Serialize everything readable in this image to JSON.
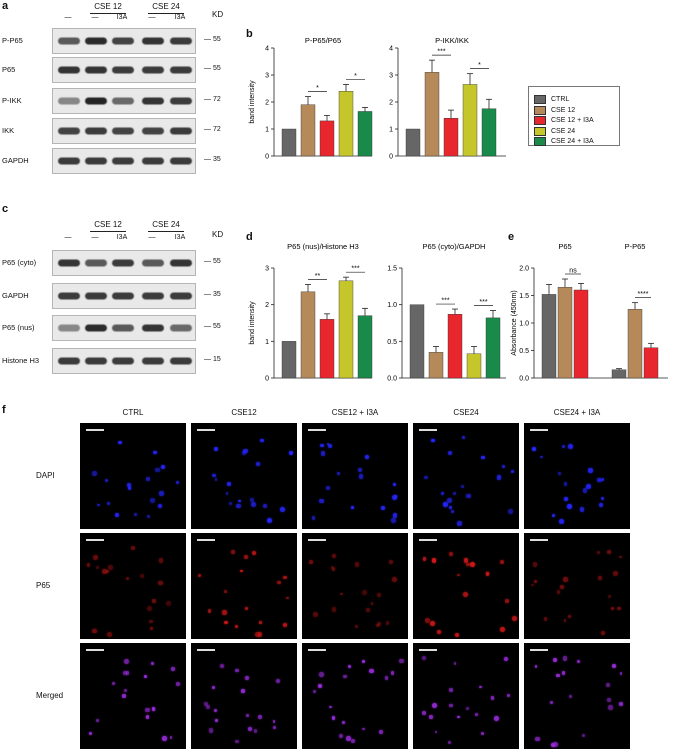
{
  "panel_letters": {
    "a": "a",
    "b": "b",
    "c": "c",
    "d": "d",
    "e": "e",
    "f": "f"
  },
  "panel_a": {
    "group_labels": [
      "CSE 12",
      "CSE 24"
    ],
    "lane_labels": [
      "—",
      "—",
      "I3A",
      "—",
      "I3A"
    ],
    "kd_label": "KD",
    "rows": [
      {
        "name": "P-P65",
        "kd": "55",
        "bands": [
          0.6,
          0.9,
          0.75,
          0.85,
          0.8
        ]
      },
      {
        "name": "P65",
        "kd": "55",
        "bands": [
          0.85,
          0.85,
          0.8,
          0.8,
          0.8
        ]
      },
      {
        "name": "P-IKK",
        "kd": "72",
        "bands": [
          0.3,
          0.95,
          0.5,
          0.85,
          0.8
        ]
      },
      {
        "name": "IKK",
        "kd": "72",
        "bands": [
          0.75,
          0.8,
          0.75,
          0.75,
          0.8
        ]
      },
      {
        "name": "GAPDH",
        "kd": "35",
        "bands": [
          0.8,
          0.8,
          0.8,
          0.8,
          0.8
        ]
      }
    ]
  },
  "panel_c": {
    "group_labels": [
      "CSE 12",
      "CSE 24"
    ],
    "lane_labels": [
      "—",
      "—",
      "I3A",
      "—",
      "I3A"
    ],
    "kd_label": "KD",
    "rows": [
      {
        "name": "P65 (cyto)",
        "kd": "55",
        "bands": [
          0.85,
          0.6,
          0.8,
          0.6,
          0.85
        ]
      },
      {
        "name": "GAPDH",
        "kd": "35",
        "bands": [
          0.8,
          0.8,
          0.8,
          0.8,
          0.8
        ]
      },
      {
        "name": "P65 (nus)",
        "kd": "55",
        "bands": [
          0.3,
          0.9,
          0.6,
          0.85,
          0.5
        ]
      },
      {
        "name": "Histone H3",
        "kd": "15",
        "bands": [
          0.8,
          0.8,
          0.8,
          0.8,
          0.8
        ]
      }
    ]
  },
  "legend": {
    "entries": [
      {
        "label": "CTRL",
        "color": "#666666"
      },
      {
        "label": "CSE 12",
        "color": "#b5895a"
      },
      {
        "label": "CSE 12 + I3A",
        "color": "#e8262d"
      },
      {
        "label": "CSE 24",
        "color": "#c4c62a"
      },
      {
        "label": "CSE 24 + I3A",
        "color": "#1a8a4a"
      }
    ]
  },
  "chart_data": [
    {
      "type": "bar",
      "panel": "b",
      "title": "P-P65/P65",
      "ylabel": "band intensity",
      "ylim": [
        0,
        4
      ],
      "ticks": [
        "0",
        "1",
        "2",
        "3",
        "4"
      ],
      "categories": [
        "CTRL",
        "CSE 12",
        "CSE 12 + I3A",
        "CSE 24",
        "CSE 24 + I3A"
      ],
      "values": [
        1.0,
        1.9,
        1.3,
        2.4,
        1.65
      ],
      "errors": [
        0,
        0.3,
        0.2,
        0.25,
        0.15
      ],
      "annotations": [
        {
          "from": 1,
          "to": 2,
          "label": "*"
        },
        {
          "from": 3,
          "to": 4,
          "label": "*"
        }
      ]
    },
    {
      "type": "bar",
      "panel": "b",
      "title": "P-IKK/IKK",
      "ylabel": "",
      "ylim": [
        0,
        4
      ],
      "ticks": [
        "0",
        "1",
        "2",
        "3",
        "4"
      ],
      "categories": [
        "CTRL",
        "CSE 12",
        "CSE 12 + I3A",
        "CSE 24",
        "CSE 24 + I3A"
      ],
      "values": [
        1.0,
        3.1,
        1.4,
        2.65,
        1.75
      ],
      "errors": [
        0,
        0.45,
        0.3,
        0.4,
        0.35
      ],
      "annotations": [
        {
          "from": 1,
          "to": 2,
          "label": "***"
        },
        {
          "from": 3,
          "to": 4,
          "label": "*"
        }
      ]
    },
    {
      "type": "bar",
      "panel": "d",
      "title": "P65 (nus)/Histone H3",
      "ylabel": "band intensity",
      "ylim": [
        0,
        3
      ],
      "ticks": [
        "0",
        "1",
        "2",
        "3"
      ],
      "categories": [
        "CTRL",
        "CSE 12",
        "CSE 12 + I3A",
        "CSE 24",
        "CSE 24 + I3A"
      ],
      "values": [
        1.0,
        2.35,
        1.6,
        2.65,
        1.7
      ],
      "errors": [
        0,
        0.2,
        0.15,
        0.1,
        0.2
      ],
      "annotations": [
        {
          "from": 1,
          "to": 2,
          "label": "**"
        },
        {
          "from": 3,
          "to": 4,
          "label": "***"
        }
      ]
    },
    {
      "type": "bar",
      "panel": "d",
      "title": "P65 (cyto)/GAPDH",
      "ylabel": "",
      "ylim": [
        0,
        1.5
      ],
      "ticks": [
        "0.0",
        "0.5",
        "1.0",
        "1.5"
      ],
      "categories": [
        "CTRL",
        "CSE 12",
        "CSE 12 + I3A",
        "CSE 24",
        "CSE 24 + I3A"
      ],
      "values": [
        1.0,
        0.35,
        0.87,
        0.33,
        0.82
      ],
      "errors": [
        0,
        0.08,
        0.07,
        0.1,
        0.1
      ],
      "annotations": [
        {
          "from": 1,
          "to": 2,
          "label": "***"
        },
        {
          "from": 3,
          "to": 4,
          "label": "***"
        }
      ]
    },
    {
      "type": "bar",
      "panel": "e",
      "title": "",
      "ylabel": "Absorbance (450nm)",
      "ylim": [
        0,
        2.0
      ],
      "ticks": [
        "0.0",
        "0.5",
        "1.0",
        "1.5",
        "2.0"
      ],
      "group_titles": [
        "P65",
        "P-P65"
      ],
      "series": [
        {
          "name": "CTRL",
          "values": [
            1.52,
            0.15
          ],
          "errors": [
            0.18,
            0.02
          ]
        },
        {
          "name": "CSE 12",
          "values": [
            1.65,
            1.25
          ],
          "errors": [
            0.15,
            0.12
          ]
        },
        {
          "name": "CSE 12 + I3A",
          "values": [
            1.6,
            0.55
          ],
          "errors": [
            0.12,
            0.08
          ]
        }
      ],
      "annotations": [
        {
          "group": 0,
          "label": "ns"
        },
        {
          "group": 1,
          "label": "****"
        }
      ]
    }
  ],
  "panel_f": {
    "columns": [
      "CTRL",
      "CSE12",
      "CSE12 + I3A",
      "CSE24",
      "CSE24 + I3A"
    ],
    "rows": [
      {
        "label": "DAPI",
        "color": "#2626ff"
      },
      {
        "label": "P65",
        "color": "#d01818"
      },
      {
        "label": "Merged",
        "color": "#9a2cdc"
      }
    ]
  }
}
